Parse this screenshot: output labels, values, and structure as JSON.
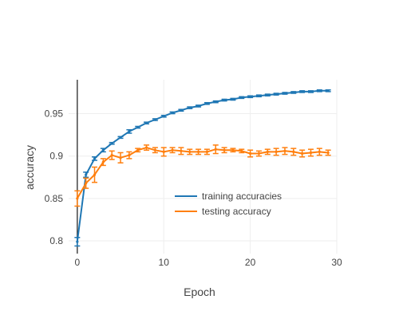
{
  "chart_data": {
    "type": "line",
    "xlabel": "Epoch",
    "ylabel": "accuracy",
    "xlim": [
      -1,
      30
    ],
    "ylim": [
      0.785,
      0.99
    ],
    "x_ticks": [
      0,
      10,
      20,
      30
    ],
    "y_ticks": [
      0.8,
      0.85,
      0.9,
      0.95
    ],
    "y_tick_labels": [
      "0.8",
      "0.85",
      "0.9",
      "0.95"
    ],
    "grid": true,
    "legend_position": "bottom-right inside plot",
    "series": [
      {
        "name": "training accuracies",
        "color": "#1f77b4",
        "x": [
          0,
          1,
          2,
          3,
          4,
          5,
          6,
          7,
          8,
          9,
          10,
          11,
          12,
          13,
          14,
          15,
          16,
          17,
          18,
          19,
          20,
          21,
          22,
          23,
          24,
          25,
          26,
          27,
          28,
          29
        ],
        "y": [
          0.799,
          0.878,
          0.897,
          0.907,
          0.915,
          0.922,
          0.929,
          0.934,
          0.939,
          0.943,
          0.947,
          0.951,
          0.954,
          0.957,
          0.959,
          0.962,
          0.964,
          0.966,
          0.967,
          0.969,
          0.97,
          0.971,
          0.972,
          0.973,
          0.974,
          0.975,
          0.976,
          0.976,
          0.977,
          0.977
        ],
        "error": [
          0.005,
          0.003,
          0.002,
          0.002,
          0.001,
          0.001,
          0.002,
          0.001,
          0.001,
          0.001,
          0.001,
          0.001,
          0.001,
          0.001,
          0.001,
          0.001,
          0.001,
          0.001,
          0.001,
          0.001,
          0.001,
          0.001,
          0.001,
          0.001,
          0.001,
          0.001,
          0.001,
          0.001,
          0.001,
          0.001
        ]
      },
      {
        "name": "testing accuracy",
        "color": "#ff7f0e",
        "x": [
          0,
          1,
          2,
          3,
          4,
          5,
          6,
          7,
          8,
          9,
          10,
          11,
          12,
          13,
          14,
          15,
          16,
          17,
          18,
          19,
          20,
          21,
          22,
          23,
          24,
          25,
          26,
          27,
          28,
          29
        ],
        "y": [
          0.85,
          0.868,
          0.878,
          0.893,
          0.901,
          0.898,
          0.901,
          0.907,
          0.91,
          0.907,
          0.905,
          0.907,
          0.906,
          0.905,
          0.905,
          0.905,
          0.908,
          0.907,
          0.907,
          0.906,
          0.903,
          0.903,
          0.905,
          0.905,
          0.906,
          0.905,
          0.903,
          0.904,
          0.905,
          0.904
        ],
        "error": [
          0.009,
          0.006,
          0.009,
          0.004,
          0.005,
          0.006,
          0.004,
          0.002,
          0.003,
          0.003,
          0.005,
          0.003,
          0.004,
          0.003,
          0.003,
          0.003,
          0.005,
          0.003,
          0.002,
          0.002,
          0.004,
          0.003,
          0.003,
          0.004,
          0.004,
          0.004,
          0.004,
          0.004,
          0.004,
          0.003
        ]
      }
    ]
  }
}
